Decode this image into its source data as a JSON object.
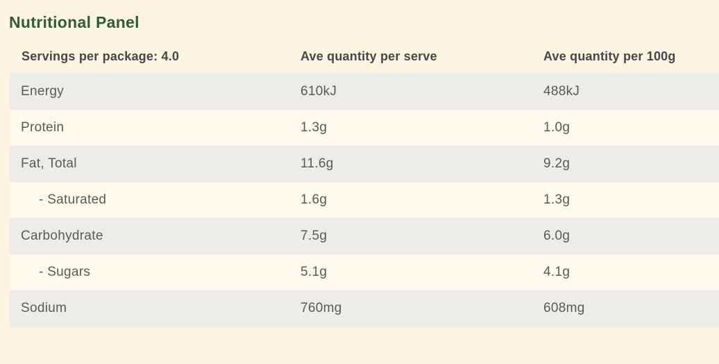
{
  "title": "Nutritional Panel",
  "table": {
    "headers": {
      "servings": "Servings per package: 4.0",
      "per_serve": "Ave quantity per serve",
      "per_100g": "Ave quantity per 100g"
    },
    "rows": [
      {
        "label": "Energy",
        "per_serve": "610kJ",
        "per_100g": "488kJ",
        "indent": false
      },
      {
        "label": "Protein",
        "per_serve": "1.3g",
        "per_100g": "1.0g",
        "indent": false
      },
      {
        "label": "Fat, Total",
        "per_serve": "11.6g",
        "per_100g": "9.2g",
        "indent": false
      },
      {
        "label": "- Saturated",
        "per_serve": "1.6g",
        "per_100g": "1.3g",
        "indent": true
      },
      {
        "label": "Carbohydrate",
        "per_serve": "7.5g",
        "per_100g": "6.0g",
        "indent": false
      },
      {
        "label": "- Sugars",
        "per_serve": "5.1g",
        "per_100g": "4.1g",
        "indent": true
      },
      {
        "label": "Sodium",
        "per_serve": "760mg",
        "per_100g": "608mg",
        "indent": false
      }
    ]
  },
  "colors": {
    "title_green": "#2F5B3B",
    "header_text": "#474645",
    "body_text": "#5B5955",
    "row_gray": "#EDECE9",
    "row_cream": "#FEF9ED",
    "page_background": "#FBF4E3"
  }
}
